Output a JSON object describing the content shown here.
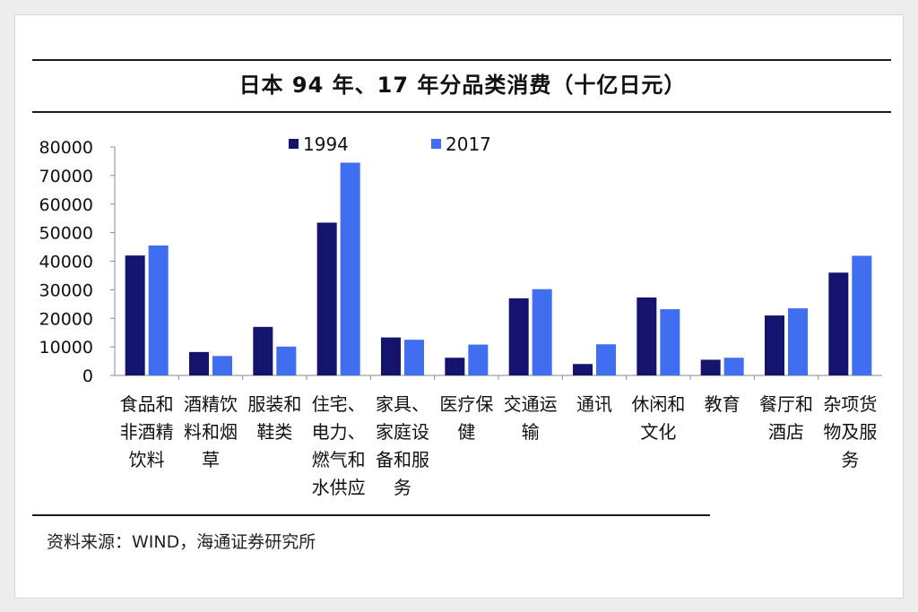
{
  "chart_data": {
    "type": "bar",
    "title": "日本 94 年、17 年分品类消费（十亿日元）",
    "categories": [
      [
        "食品和",
        "非酒精",
        "饮料"
      ],
      [
        "酒精饮",
        "料和烟",
        "草"
      ],
      [
        "服装和",
        "鞋类"
      ],
      [
        "住宅、",
        "电力、",
        "燃气和",
        "水供应"
      ],
      [
        "家具、",
        "家庭设",
        "备和服",
        "务"
      ],
      [
        "医疗保",
        "健"
      ],
      [
        "交通运",
        "输"
      ],
      [
        "通讯"
      ],
      [
        "休闲和",
        "文化"
      ],
      [
        "教育"
      ],
      [
        "餐厅和",
        "酒店"
      ],
      [
        "杂项货",
        "物及服",
        "务"
      ]
    ],
    "series": [
      {
        "name": "1994",
        "color": "#14146e",
        "values": [
          42000,
          8200,
          17000,
          53500,
          13300,
          6200,
          27000,
          4000,
          27300,
          5500,
          21000,
          36000
        ]
      },
      {
        "name": "2017",
        "color": "#3f6ef0",
        "values": [
          45500,
          6800,
          10100,
          74500,
          12500,
          10800,
          30200,
          10900,
          23200,
          6200,
          23500,
          41900
        ]
      }
    ],
    "yticks": [
      "80000",
      "70000",
      "60000",
      "50000",
      "40000",
      "30000",
      "20000",
      "10000",
      "0"
    ],
    "ylim": [
      0,
      80000
    ],
    "legend_position": "top"
  },
  "source": "资料来源：WIND，海通证券研究所"
}
